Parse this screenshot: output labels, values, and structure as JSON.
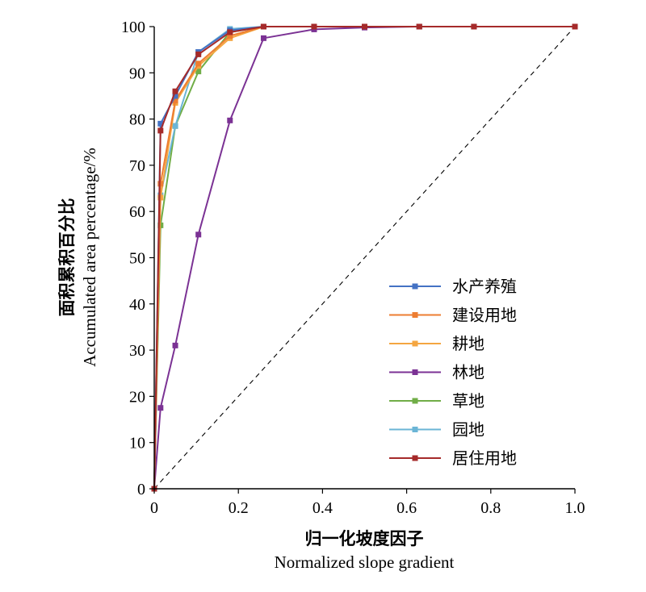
{
  "chart_data": {
    "type": "line",
    "xlabel_cn": "归一化坡度因子",
    "xlabel_en": "Normalized slope gradient",
    "ylabel_cn": "面积累积百分比",
    "ylabel_en": "Accumulated area percentage/%",
    "xlim": [
      0,
      1.0
    ],
    "ylim": [
      0,
      100
    ],
    "x_ticks": [
      "0",
      "0.2",
      "0.4",
      "0.6",
      "0.8",
      "1.0"
    ],
    "y_ticks": [
      "0",
      "10",
      "20",
      "30",
      "40",
      "50",
      "60",
      "70",
      "80",
      "90",
      "100"
    ],
    "legend_position": "lower-right",
    "reference_line": {
      "style": "dashed",
      "x": [
        0,
        1.0
      ],
      "y": [
        0,
        100
      ],
      "color": "#000000"
    },
    "series": [
      {
        "name": "水产养殖",
        "color": "#4472C4",
        "x": [
          0,
          0.015,
          0.05,
          0.105,
          0.18,
          0.26,
          0.38,
          0.5,
          0.63,
          0.76,
          1.0
        ],
        "y": [
          0,
          79,
          85,
          94.5,
          99.2,
          100,
          100,
          100,
          100,
          100,
          100
        ]
      },
      {
        "name": "建设用地",
        "color": "#ED7D31",
        "x": [
          0,
          0.015,
          0.05,
          0.105,
          0.18,
          0.26,
          0.38,
          0.5,
          0.63,
          0.76,
          1.0
        ],
        "y": [
          0,
          66,
          84,
          92,
          98,
          100,
          100,
          100,
          100,
          100,
          100
        ]
      },
      {
        "name": "耕地",
        "color": "#F4A641",
        "x": [
          0,
          0.015,
          0.05,
          0.105,
          0.18,
          0.26,
          0.38,
          0.5,
          0.63,
          0.76,
          1.0
        ],
        "y": [
          0,
          63,
          83.5,
          91.5,
          97.5,
          100,
          100,
          100,
          100,
          100,
          100
        ]
      },
      {
        "name": "林地",
        "color": "#7B3294",
        "x": [
          0,
          0.015,
          0.05,
          0.105,
          0.18,
          0.26,
          0.38,
          0.5,
          0.63,
          0.76,
          1.0
        ],
        "y": [
          0,
          17.5,
          31,
          55,
          79.7,
          97.5,
          99.4,
          99.8,
          100,
          100,
          100
        ]
      },
      {
        "name": "草地",
        "color": "#70AD47",
        "x": [
          0,
          0.015,
          0.05,
          0.105,
          0.18,
          0.26,
          0.38,
          0.5,
          0.63,
          0.76,
          1.0
        ],
        "y": [
          0,
          57,
          78.5,
          90.3,
          98.8,
          100,
          100,
          100,
          100,
          100,
          100
        ]
      },
      {
        "name": "园地",
        "color": "#6BB5D6",
        "x": [
          0,
          0.015,
          0.05,
          0.105,
          0.18,
          0.26,
          0.38,
          0.5,
          0.63,
          0.76,
          1.0
        ],
        "y": [
          0,
          63.5,
          78.5,
          94.5,
          99.5,
          100,
          100,
          100,
          100,
          100,
          100
        ]
      },
      {
        "name": "居住用地",
        "color": "#A52A2A",
        "x": [
          0,
          0.015,
          0.05,
          0.105,
          0.18,
          0.26,
          0.38,
          0.5,
          0.63,
          0.76,
          1.0
        ],
        "y": [
          0,
          77.5,
          86,
          94,
          98.8,
          100,
          100,
          100,
          100,
          100,
          100
        ]
      }
    ]
  }
}
